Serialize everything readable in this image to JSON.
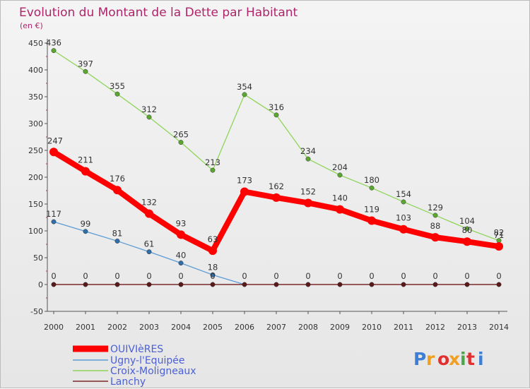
{
  "chart_data": {
    "type": "line",
    "title": "Evolution du Montant de la Dette par Habitant",
    "ylabel": "(en €)",
    "xlabel": "",
    "categories": [
      "2000",
      "2001",
      "2002",
      "2003",
      "2004",
      "2005",
      "2006",
      "2007",
      "2008",
      "2009",
      "2010",
      "2011",
      "2012",
      "2013",
      "2014"
    ],
    "ylim": [
      -50,
      450
    ],
    "yticks": [
      -50,
      0,
      50,
      100,
      150,
      200,
      250,
      300,
      350,
      400,
      450
    ],
    "grid": false,
    "legend_position": "bottom-left",
    "series": [
      {
        "name": "OUIVIèRES",
        "color": "#ff0000",
        "values": [
          247,
          211,
          176,
          132,
          93,
          63,
          173,
          162,
          152,
          140,
          119,
          103,
          88,
          80,
          71
        ],
        "labels": [
          "247",
          "211",
          "176",
          "132",
          "93",
          "63",
          "173",
          "162",
          "152",
          "140",
          "119",
          "103",
          "88",
          "80",
          "71"
        ]
      },
      {
        "name": "Ugny-l'Equipée",
        "color": "#5b9bd5",
        "values": [
          117,
          99,
          81,
          61,
          40,
          18,
          0,
          null,
          null,
          null,
          null,
          null,
          null,
          null,
          null
        ],
        "labels": [
          "117",
          "99",
          "81",
          "61",
          "40",
          "18",
          "",
          "",
          "",
          "",
          "",
          "",
          "",
          "",
          ""
        ]
      },
      {
        "name": "Croix-Moligneaux",
        "color": "#8fd45a",
        "values": [
          436,
          397,
          355,
          312,
          265,
          213,
          354,
          316,
          234,
          204,
          180,
          154,
          129,
          104,
          82
        ],
        "labels": [
          "436",
          "397",
          "355",
          "312",
          "265",
          "213",
          "354",
          "316",
          "234",
          "204",
          "180",
          "154",
          "129",
          "104",
          "82"
        ]
      },
      {
        "name": "Lanchy",
        "color": "#7a2a2a",
        "values": [
          0,
          0,
          0,
          0,
          0,
          0,
          0,
          0,
          0,
          0,
          0,
          0,
          0,
          0,
          0
        ],
        "labels": [
          "0",
          "0",
          "0",
          "0",
          "0",
          "0",
          "0",
          "0",
          "0",
          "0",
          "0",
          "0",
          "0",
          "0",
          "0"
        ]
      }
    ]
  },
  "logo": {
    "text": "Proxiti"
  }
}
